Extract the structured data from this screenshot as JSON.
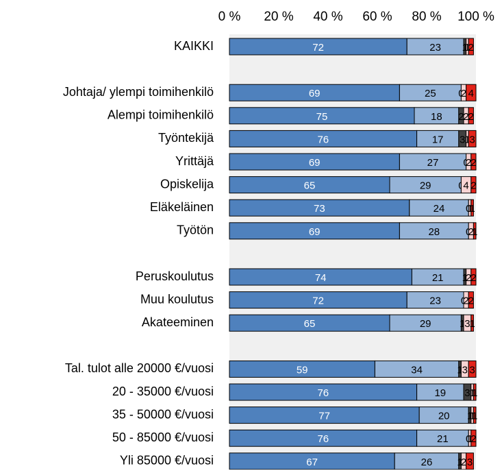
{
  "chart_data": {
    "type": "stacked-bar-horizontal",
    "categories": [
      "KAIKKI",
      null,
      "Johtaja/ ylempi toimihenkilö",
      "Alempi toimihenkilö",
      "Työntekijä",
      "Yrittäjä",
      "Opiskelija",
      "Eläkeläinen",
      "Työtön",
      null,
      "Peruskoulutus",
      "Muu koulutus",
      "Akateeminen",
      null,
      "Tal. tulot alle 20000 €/vuosi",
      "20 - 35000 €/vuosi",
      "35 - 50000 €/vuosi",
      "50 - 85000 €/vuosi",
      "Yli 85000 €/vuosi"
    ],
    "series": [
      {
        "color": "#4f81bd",
        "values": [
          72,
          null,
          69,
          75,
          76,
          69,
          65,
          73,
          69,
          null,
          74,
          72,
          65,
          null,
          59,
          76,
          77,
          76,
          67
        ]
      },
      {
        "color": "#95b3d7",
        "values": [
          23,
          null,
          25,
          18,
          17,
          27,
          29,
          24,
          28,
          null,
          21,
          23,
          29,
          null,
          34,
          19,
          20,
          21,
          26
        ]
      },
      {
        "color": "#404040",
        "values": [
          1,
          null,
          0,
          2,
          3,
          0,
          0,
          0,
          0,
          null,
          1,
          0,
          1,
          null,
          1,
          3,
          1,
          0,
          1
        ]
      },
      {
        "color": "#f8d3d3",
        "values": [
          1,
          null,
          2,
          2,
          1,
          2,
          4,
          1,
          2,
          null,
          2,
          2,
          3,
          null,
          3,
          1,
          1,
          1,
          2
        ]
      },
      {
        "color": "#e2231a",
        "values": [
          2,
          null,
          4,
          2,
          3,
          2,
          2,
          1,
          1,
          null,
          2,
          2,
          1,
          null,
          3,
          1,
          1,
          2,
          3
        ]
      }
    ],
    "xlim": [
      0,
      100
    ],
    "xticks": [
      {
        "value": 0,
        "label": "0 %"
      },
      {
        "value": 20,
        "label": "20 %"
      },
      {
        "value": 40,
        "label": "40 %"
      },
      {
        "value": 60,
        "label": "60 %"
      },
      {
        "value": 80,
        "label": "80 %"
      },
      {
        "value": 100,
        "label": "100 %"
      }
    ]
  }
}
